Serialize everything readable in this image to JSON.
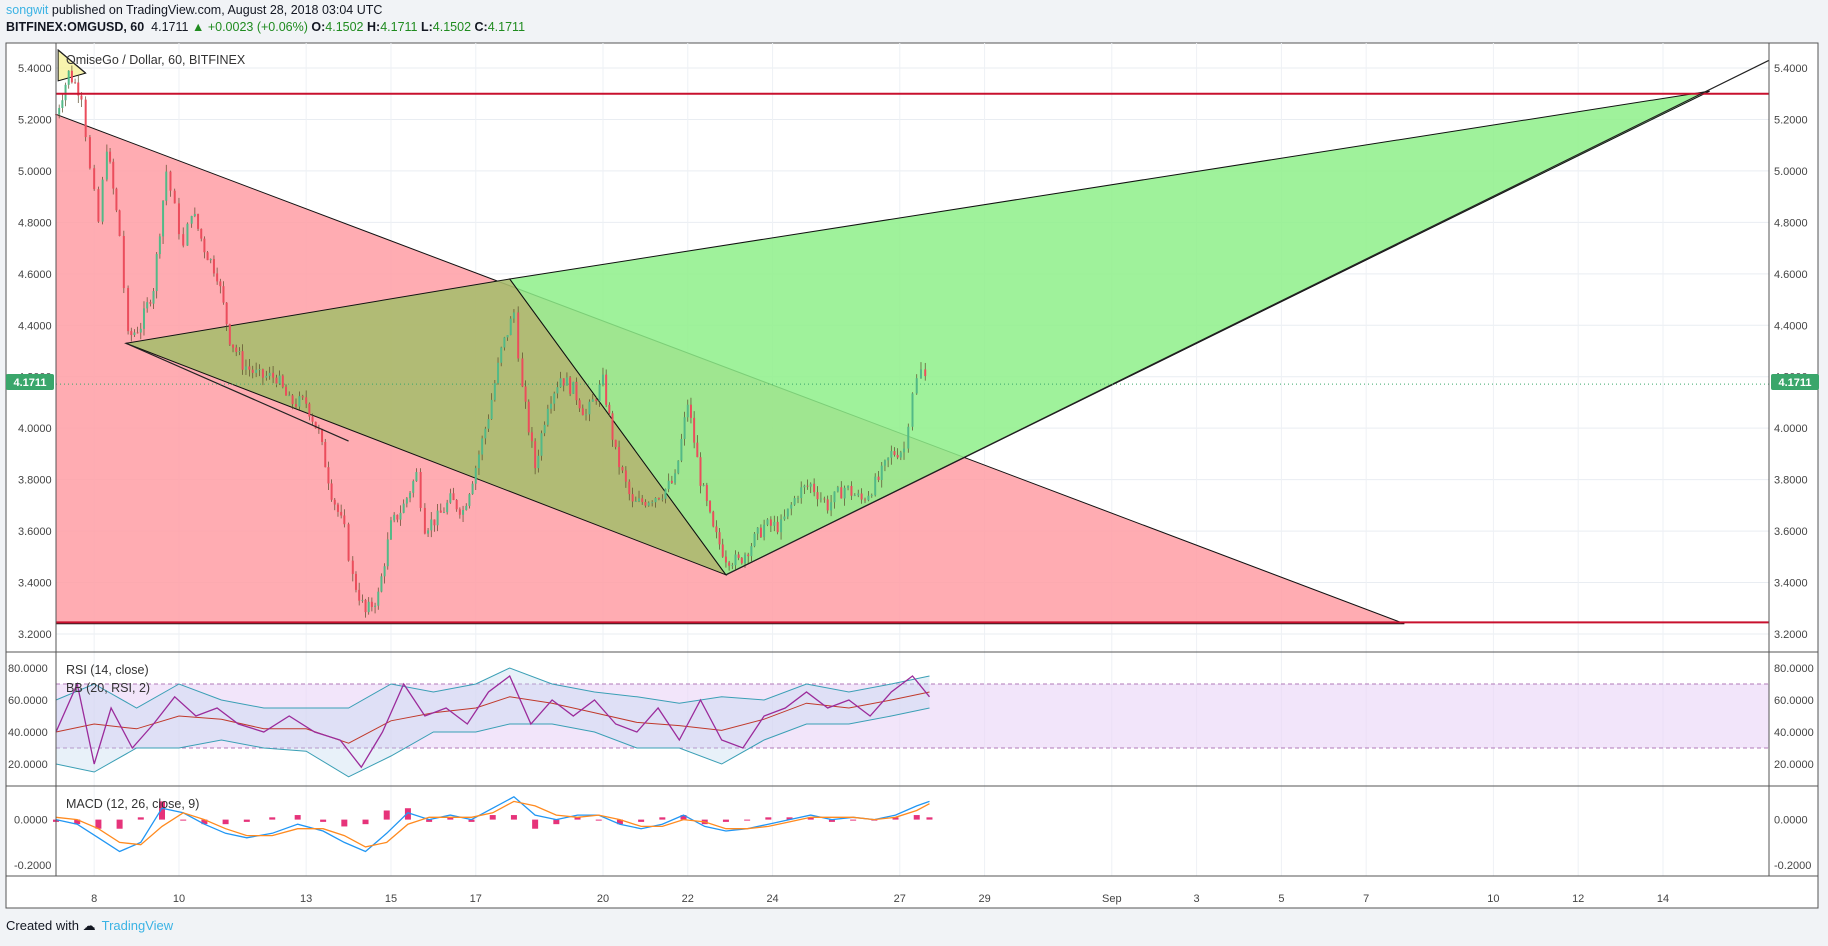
{
  "header": {
    "user": "songwit",
    "published": "published on TradingView.com, August 28, 2018 03:04 UTC",
    "symbol": "BITFINEX:OMGUSD, 60",
    "last": "4.1711",
    "change": "▲ +0.0023 (+0.06%)",
    "o_label": "O:",
    "o_value": "4.1502",
    "h_label": "H:",
    "h_value": "4.1711",
    "l_label": "L:",
    "l_value": "4.1502",
    "c_label": "C:",
    "c_value": "4.1711"
  },
  "footer": {
    "created_with": "Created with",
    "brand": "TradingView"
  },
  "colors": {
    "up": "#53b987",
    "down": "#eb4d5c",
    "red_zone": "#ff9ea5",
    "green_zone": "#8ef08a",
    "olive_zone": "#a9bd6e",
    "rsi_band": "#e9d3f7",
    "rsi": "#9b2b9b",
    "bb": "#3a9fb5",
    "macd": "#2196f3",
    "signal": "#ff8a1f"
  },
  "chart_data": [
    {
      "type": "candlestick",
      "title": "OmiseGo / Dollar, 60, BITFINEX",
      "y_ticks": [
        "5.4000",
        "5.2000",
        "5.0000",
        "4.8000",
        "4.6000",
        "4.4000",
        "4.2000",
        "4.0000",
        "3.8000",
        "3.6000",
        "3.4000",
        "3.2000"
      ],
      "ylim": [
        3.2,
        5.4
      ],
      "x_ticks": [
        "8",
        "10",
        "13",
        "15",
        "17",
        "20",
        "22",
        "24",
        "27",
        "29",
        "Sep",
        "3",
        "5",
        "7",
        "10",
        "12",
        "14"
      ],
      "x_tick_days": [
        8,
        10,
        13,
        15,
        17,
        20,
        22,
        24,
        27,
        29,
        32,
        34,
        36,
        38,
        41,
        43,
        45
      ],
      "x_range_days": [
        7.1,
        47.5
      ],
      "last_price_label": "4.1711",
      "last_price": 4.1711,
      "price_path": [
        [
          7.1,
          5.22
        ],
        [
          7.4,
          5.38
        ],
        [
          7.7,
          5.3
        ],
        [
          7.9,
          5.0
        ],
        [
          8.1,
          4.8
        ],
        [
          8.3,
          5.1
        ],
        [
          8.6,
          4.75
        ],
        [
          8.8,
          4.35
        ],
        [
          9.1,
          4.4
        ],
        [
          9.4,
          4.55
        ],
        [
          9.7,
          5.0
        ],
        [
          9.9,
          4.85
        ],
        [
          10.1,
          4.7
        ],
        [
          10.3,
          4.85
        ],
        [
          10.6,
          4.7
        ],
        [
          10.9,
          4.6
        ],
        [
          11.2,
          4.35
        ],
        [
          11.5,
          4.25
        ],
        [
          11.9,
          4.2
        ],
        [
          12.3,
          4.2
        ],
        [
          12.6,
          4.1
        ],
        [
          13.0,
          4.1
        ],
        [
          13.3,
          3.98
        ],
        [
          13.6,
          3.75
        ],
        [
          13.9,
          3.6
        ],
        [
          14.1,
          3.42
        ],
        [
          14.4,
          3.28
        ],
        [
          14.7,
          3.35
        ],
        [
          15.0,
          3.62
        ],
        [
          15.3,
          3.7
        ],
        [
          15.6,
          3.82
        ],
        [
          15.8,
          3.62
        ],
        [
          16.1,
          3.65
        ],
        [
          16.4,
          3.72
        ],
        [
          16.7,
          3.68
        ],
        [
          17.0,
          3.85
        ],
        [
          17.3,
          4.05
        ],
        [
          17.6,
          4.3
        ],
        [
          17.9,
          4.45
        ],
        [
          18.1,
          4.15
        ],
        [
          18.4,
          3.85
        ],
        [
          18.7,
          4.1
        ],
        [
          19.0,
          4.2
        ],
        [
          19.3,
          4.15
        ],
        [
          19.6,
          4.05
        ],
        [
          20.0,
          4.18
        ],
        [
          20.3,
          3.9
        ],
        [
          20.7,
          3.7
        ],
        [
          21.0,
          3.72
        ],
        [
          21.4,
          3.75
        ],
        [
          21.7,
          3.8
        ],
        [
          22.0,
          4.1
        ],
        [
          22.3,
          3.8
        ],
        [
          22.6,
          3.6
        ],
        [
          22.9,
          3.5
        ],
        [
          23.2,
          3.48
        ],
        [
          23.5,
          3.55
        ],
        [
          23.8,
          3.62
        ],
        [
          24.2,
          3.62
        ],
        [
          24.6,
          3.75
        ],
        [
          24.9,
          3.78
        ],
        [
          25.3,
          3.7
        ],
        [
          25.7,
          3.77
        ],
        [
          26.1,
          3.72
        ],
        [
          26.5,
          3.8
        ],
        [
          26.8,
          3.9
        ],
        [
          27.1,
          3.92
        ],
        [
          27.3,
          4.15
        ],
        [
          27.5,
          4.22
        ],
        [
          27.7,
          4.17
        ]
      ],
      "pattern_triangles": [
        {
          "name": "red",
          "points": [
            [
              7.1,
              5.22
            ],
            [
              7.1,
              3.24
            ],
            [
              38.9,
              3.24
            ]
          ]
        },
        {
          "name": "olive",
          "points": [
            [
              8.75,
              4.33
            ],
            [
              17.8,
              4.58
            ],
            [
              22.9,
              3.43
            ]
          ]
        },
        {
          "name": "green",
          "points": [
            [
              17.8,
              4.58
            ],
            [
              22.9,
              3.43
            ],
            [
              46.1,
              5.31
            ]
          ]
        },
        {
          "name": "yellow",
          "points": [
            [
              7.15,
              5.47
            ],
            [
              7.15,
              5.35
            ],
            [
              7.8,
              5.38
            ]
          ]
        }
      ],
      "horizontal_lines": [
        5.3,
        3.245
      ],
      "trendlines": [
        [
          [
            8.75,
            4.33
          ],
          [
            14.0,
            3.95
          ]
        ],
        [
          [
            22.9,
            3.43
          ],
          [
            47.5,
            5.43
          ]
        ],
        [
          [
            7.15,
            5.47
          ],
          [
            7.8,
            5.38
          ]
        ]
      ]
    },
    {
      "type": "line",
      "title": "RSI (14, close)",
      "subtitle": "BB (20, RSI, 2)",
      "y_ticks": [
        "80.0000",
        "60.0000",
        "40.0000",
        "20.0000"
      ],
      "ylim": [
        10,
        85
      ],
      "band": [
        30,
        70
      ],
      "rsi": [
        [
          7.1,
          40
        ],
        [
          7.6,
          70
        ],
        [
          8.0,
          20
        ],
        [
          8.4,
          55
        ],
        [
          8.9,
          30
        ],
        [
          9.4,
          45
        ],
        [
          9.9,
          62
        ],
        [
          10.4,
          50
        ],
        [
          10.9,
          55
        ],
        [
          11.4,
          45
        ],
        [
          12.0,
          40
        ],
        [
          12.6,
          50
        ],
        [
          13.2,
          40
        ],
        [
          13.8,
          35
        ],
        [
          14.3,
          18
        ],
        [
          14.8,
          40
        ],
        [
          15.3,
          70
        ],
        [
          15.8,
          50
        ],
        [
          16.3,
          55
        ],
        [
          16.8,
          45
        ],
        [
          17.3,
          65
        ],
        [
          17.8,
          75
        ],
        [
          18.3,
          45
        ],
        [
          18.8,
          60
        ],
        [
          19.3,
          50
        ],
        [
          19.8,
          60
        ],
        [
          20.3,
          45
        ],
        [
          20.8,
          40
        ],
        [
          21.3,
          55
        ],
        [
          21.8,
          35
        ],
        [
          22.3,
          60
        ],
        [
          22.8,
          35
        ],
        [
          23.3,
          30
        ],
        [
          23.8,
          50
        ],
        [
          24.3,
          55
        ],
        [
          24.8,
          65
        ],
        [
          25.3,
          55
        ],
        [
          25.8,
          60
        ],
        [
          26.3,
          50
        ],
        [
          26.8,
          65
        ],
        [
          27.3,
          75
        ],
        [
          27.7,
          62
        ]
      ],
      "bb_upper": [
        [
          7.1,
          60
        ],
        [
          8.0,
          70
        ],
        [
          9.0,
          55
        ],
        [
          10.0,
          70
        ],
        [
          11.0,
          60
        ],
        [
          12.0,
          55
        ],
        [
          13.0,
          55
        ],
        [
          14.0,
          55
        ],
        [
          15.0,
          70
        ],
        [
          16.0,
          65
        ],
        [
          17.0,
          70
        ],
        [
          17.8,
          80
        ],
        [
          18.8,
          70
        ],
        [
          19.8,
          65
        ],
        [
          20.8,
          62
        ],
        [
          21.8,
          58
        ],
        [
          22.8,
          62
        ],
        [
          23.8,
          60
        ],
        [
          24.8,
          70
        ],
        [
          25.8,
          65
        ],
        [
          26.8,
          70
        ],
        [
          27.7,
          75
        ]
      ],
      "bb_lower": [
        [
          7.1,
          20
        ],
        [
          8.0,
          15
        ],
        [
          9.0,
          30
        ],
        [
          10.0,
          30
        ],
        [
          11.0,
          35
        ],
        [
          12.0,
          30
        ],
        [
          13.0,
          28
        ],
        [
          14.0,
          12
        ],
        [
          15.0,
          25
        ],
        [
          16.0,
          40
        ],
        [
          17.0,
          40
        ],
        [
          17.8,
          45
        ],
        [
          18.8,
          45
        ],
        [
          19.8,
          40
        ],
        [
          20.8,
          30
        ],
        [
          21.8,
          30
        ],
        [
          22.8,
          20
        ],
        [
          23.8,
          35
        ],
        [
          24.8,
          45
        ],
        [
          25.8,
          45
        ],
        [
          26.8,
          50
        ],
        [
          27.7,
          55
        ]
      ],
      "bb_basis": [
        [
          7.1,
          40
        ],
        [
          8.0,
          45
        ],
        [
          9.0,
          42
        ],
        [
          10.0,
          50
        ],
        [
          11.0,
          48
        ],
        [
          12.0,
          42
        ],
        [
          13.0,
          42
        ],
        [
          14.0,
          33
        ],
        [
          15.0,
          47
        ],
        [
          16.0,
          52
        ],
        [
          17.0,
          55
        ],
        [
          17.8,
          62
        ],
        [
          18.8,
          58
        ],
        [
          19.8,
          52
        ],
        [
          20.8,
          46
        ],
        [
          21.8,
          44
        ],
        [
          22.8,
          41
        ],
        [
          23.8,
          48
        ],
        [
          24.8,
          58
        ],
        [
          25.8,
          55
        ],
        [
          26.8,
          60
        ],
        [
          27.7,
          65
        ]
      ]
    },
    {
      "type": "line",
      "title": "MACD (12, 26, close, 9)",
      "y_ticks": [
        "0.0000",
        "-0.2000"
      ],
      "ylim": [
        -0.23,
        0.13
      ],
      "macd": [
        [
          7.1,
          0.0
        ],
        [
          7.6,
          -0.02
        ],
        [
          8.1,
          -0.08
        ],
        [
          8.6,
          -0.14
        ],
        [
          9.1,
          -0.1
        ],
        [
          9.6,
          0.05
        ],
        [
          10.1,
          0.03
        ],
        [
          10.6,
          -0.02
        ],
        [
          11.1,
          -0.06
        ],
        [
          11.6,
          -0.08
        ],
        [
          12.2,
          -0.06
        ],
        [
          12.8,
          -0.02
        ],
        [
          13.4,
          -0.05
        ],
        [
          13.9,
          -0.1
        ],
        [
          14.4,
          -0.14
        ],
        [
          14.9,
          -0.06
        ],
        [
          15.4,
          0.03
        ],
        [
          15.9,
          0.0
        ],
        [
          16.4,
          0.02
        ],
        [
          16.9,
          0.0
        ],
        [
          17.4,
          0.05
        ],
        [
          17.9,
          0.1
        ],
        [
          18.4,
          0.02
        ],
        [
          18.9,
          0.0
        ],
        [
          19.4,
          0.02
        ],
        [
          19.9,
          0.02
        ],
        [
          20.4,
          -0.02
        ],
        [
          20.9,
          -0.04
        ],
        [
          21.4,
          -0.02
        ],
        [
          21.9,
          0.02
        ],
        [
          22.4,
          -0.03
        ],
        [
          22.9,
          -0.05
        ],
        [
          23.4,
          -0.04
        ],
        [
          23.9,
          -0.02
        ],
        [
          24.4,
          0.0
        ],
        [
          24.9,
          0.02
        ],
        [
          25.4,
          0.0
        ],
        [
          25.9,
          0.01
        ],
        [
          26.4,
          0.0
        ],
        [
          26.9,
          0.02
        ],
        [
          27.4,
          0.06
        ],
        [
          27.7,
          0.08
        ]
      ],
      "signal": [
        [
          7.1,
          0.01
        ],
        [
          7.6,
          0.0
        ],
        [
          8.1,
          -0.04
        ],
        [
          8.6,
          -0.1
        ],
        [
          9.1,
          -0.11
        ],
        [
          9.6,
          -0.03
        ],
        [
          10.1,
          0.03
        ],
        [
          10.6,
          0.0
        ],
        [
          11.1,
          -0.04
        ],
        [
          11.6,
          -0.07
        ],
        [
          12.2,
          -0.07
        ],
        [
          12.8,
          -0.04
        ],
        [
          13.4,
          -0.04
        ],
        [
          13.9,
          -0.07
        ],
        [
          14.4,
          -0.12
        ],
        [
          14.9,
          -0.1
        ],
        [
          15.4,
          -0.02
        ],
        [
          15.9,
          0.01
        ],
        [
          16.4,
          0.01
        ],
        [
          16.9,
          0.01
        ],
        [
          17.4,
          0.03
        ],
        [
          17.9,
          0.08
        ],
        [
          18.4,
          0.06
        ],
        [
          18.9,
          0.02
        ],
        [
          19.4,
          0.01
        ],
        [
          19.9,
          0.02
        ],
        [
          20.4,
          0.0
        ],
        [
          20.9,
          -0.03
        ],
        [
          21.4,
          -0.03
        ],
        [
          21.9,
          0.0
        ],
        [
          22.4,
          -0.01
        ],
        [
          22.9,
          -0.04
        ],
        [
          23.4,
          -0.04
        ],
        [
          23.9,
          -0.03
        ],
        [
          24.4,
          -0.01
        ],
        [
          24.9,
          0.01
        ],
        [
          25.4,
          0.01
        ],
        [
          25.9,
          0.01
        ],
        [
          26.4,
          0.0
        ],
        [
          26.9,
          0.01
        ],
        [
          27.4,
          0.04
        ],
        [
          27.7,
          0.07
        ]
      ]
    }
  ]
}
